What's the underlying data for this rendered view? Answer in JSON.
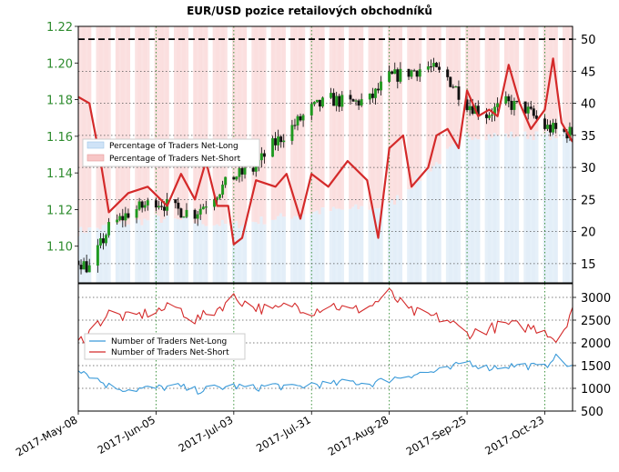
{
  "chart_data": [
    {
      "type": "candlestick",
      "title": "EUR/USD pozice retailových obchodníků",
      "left_axis": {
        "ylim": [
          1.08,
          1.22
        ],
        "ticks": [
          1.1,
          1.12,
          1.14,
          1.16,
          1.18,
          1.2,
          1.22
        ],
        "tick_labels": [
          "1.10",
          "1.12",
          "1.14",
          "1.16",
          "1.18",
          "1.20",
          "1.22"
        ],
        "color": "#2e8b2e"
      },
      "right_axis": {
        "ylim": [
          12,
          52
        ],
        "ticks": [
          15,
          20,
          25,
          30,
          35,
          40,
          45,
          50
        ],
        "tick_labels": [
          "15",
          "20",
          "25",
          "30",
          "35",
          "40",
          "45",
          "50"
        ],
        "reference_line": 50
      },
      "x_dates": [
        "2017-05-08",
        "2017-06-05",
        "2017-07-03",
        "2017-07-31",
        "2017-08-28",
        "2017-09-25",
        "2017-10-23"
      ],
      "x_tick_labels": [
        "2017-May-08",
        "2017-Jun-05",
        "2017-Jul-03",
        "2017-Jul-31",
        "2017-Aug-28",
        "2017-Sep-25",
        "2017-Oct-23"
      ],
      "price_close_keypoints": [
        {
          "date": "2017-05-08",
          "value": 1.092
        },
        {
          "date": "2017-05-12",
          "value": 1.088
        },
        {
          "date": "2017-05-19",
          "value": 1.11
        },
        {
          "date": "2017-05-26",
          "value": 1.118
        },
        {
          "date": "2017-06-05",
          "value": 1.125
        },
        {
          "date": "2017-06-12",
          "value": 1.12
        },
        {
          "date": "2017-06-19",
          "value": 1.118
        },
        {
          "date": "2017-06-26",
          "value": 1.128
        },
        {
          "date": "2017-07-03",
          "value": 1.138
        },
        {
          "date": "2017-07-10",
          "value": 1.142
        },
        {
          "date": "2017-07-17",
          "value": 1.155
        },
        {
          "date": "2017-07-24",
          "value": 1.165
        },
        {
          "date": "2017-07-31",
          "value": 1.175
        },
        {
          "date": "2017-08-07",
          "value": 1.18
        },
        {
          "date": "2017-08-14",
          "value": 1.178
        },
        {
          "date": "2017-08-21",
          "value": 1.18
        },
        {
          "date": "2017-08-28",
          "value": 1.192
        },
        {
          "date": "2017-09-04",
          "value": 1.195
        },
        {
          "date": "2017-09-11",
          "value": 1.198
        },
        {
          "date": "2017-09-18",
          "value": 1.192
        },
        {
          "date": "2017-09-25",
          "value": 1.178
        },
        {
          "date": "2017-10-02",
          "value": 1.172
        },
        {
          "date": "2017-10-09",
          "value": 1.178
        },
        {
          "date": "2017-10-16",
          "value": 1.175
        },
        {
          "date": "2017-10-23",
          "value": 1.165
        },
        {
          "date": "2017-10-30",
          "value": 1.162
        }
      ],
      "series": [
        {
          "name": "Percentage of Traders Net-Long",
          "color": "#cfe3f7",
          "note_keypoints": [
            {
              "date": "2017-05-08",
              "value": 20
            },
            {
              "date": "2017-06-05",
              "value": 22
            },
            {
              "date": "2017-07-03",
              "value": 21
            },
            {
              "date": "2017-07-31",
              "value": 23
            },
            {
              "date": "2017-08-28",
              "value": 24
            },
            {
              "date": "2017-09-25",
              "value": 35
            },
            {
              "date": "2017-10-23",
              "value": 35
            }
          ]
        },
        {
          "name": "Percentage of Traders Net-Short",
          "color": "#f7c6c6",
          "line_color": "#d42a2a",
          "keypoints": [
            {
              "date": "2017-05-08",
              "value": 41
            },
            {
              "date": "2017-05-12",
              "value": 40
            },
            {
              "date": "2017-05-16",
              "value": 31
            },
            {
              "date": "2017-05-19",
              "value": 23
            },
            {
              "date": "2017-05-26",
              "value": 26
            },
            {
              "date": "2017-06-02",
              "value": 27
            },
            {
              "date": "2017-06-09",
              "value": 24
            },
            {
              "date": "2017-06-14",
              "value": 29
            },
            {
              "date": "2017-06-19",
              "value": 25
            },
            {
              "date": "2017-06-23",
              "value": 31
            },
            {
              "date": "2017-06-27",
              "value": 24
            },
            {
              "date": "2017-07-01",
              "value": 24
            },
            {
              "date": "2017-07-03",
              "value": 18
            },
            {
              "date": "2017-07-06",
              "value": 19
            },
            {
              "date": "2017-07-11",
              "value": 28
            },
            {
              "date": "2017-07-18",
              "value": 27
            },
            {
              "date": "2017-07-22",
              "value": 29
            },
            {
              "date": "2017-07-27",
              "value": 22
            },
            {
              "date": "2017-07-31",
              "value": 29
            },
            {
              "date": "2017-08-06",
              "value": 27
            },
            {
              "date": "2017-08-13",
              "value": 31
            },
            {
              "date": "2017-08-20",
              "value": 28
            },
            {
              "date": "2017-08-24",
              "value": 19
            },
            {
              "date": "2017-08-28",
              "value": 33
            },
            {
              "date": "2017-09-02",
              "value": 35
            },
            {
              "date": "2017-09-05",
              "value": 27
            },
            {
              "date": "2017-09-11",
              "value": 30
            },
            {
              "date": "2017-09-14",
              "value": 35
            },
            {
              "date": "2017-09-18",
              "value": 36
            },
            {
              "date": "2017-09-22",
              "value": 33
            },
            {
              "date": "2017-09-25",
              "value": 42
            },
            {
              "date": "2017-09-29",
              "value": 38
            },
            {
              "date": "2017-10-03",
              "value": 39
            },
            {
              "date": "2017-10-06",
              "value": 38
            },
            {
              "date": "2017-10-10",
              "value": 46
            },
            {
              "date": "2017-10-14",
              "value": 40
            },
            {
              "date": "2017-10-18",
              "value": 36
            },
            {
              "date": "2017-10-23",
              "value": 39
            },
            {
              "date": "2017-10-26",
              "value": 47
            },
            {
              "date": "2017-10-29",
              "value": 37
            },
            {
              "date": "2017-11-02",
              "value": 34
            }
          ]
        }
      ],
      "legend": {
        "placement": "left",
        "entries": [
          "Percentage of Traders Net-Long",
          "Percentage of Traders Net-Short"
        ]
      },
      "grid": true
    },
    {
      "type": "line",
      "right_axis": {
        "ylim": [
          500,
          3300
        ],
        "ticks": [
          500,
          1000,
          1500,
          2000,
          2500,
          3000
        ],
        "tick_labels": [
          "500",
          "1000",
          "1500",
          "2000",
          "2500",
          "3000"
        ]
      },
      "series": [
        {
          "name": "Number of Traders Net-Long",
          "color": "#3a9ad9",
          "keypoints": [
            {
              "date": "2017-05-08",
              "value": 1450
            },
            {
              "date": "2017-05-12",
              "value": 1300
            },
            {
              "date": "2017-05-19",
              "value": 1050
            },
            {
              "date": "2017-05-26",
              "value": 980
            },
            {
              "date": "2017-06-05",
              "value": 1000
            },
            {
              "date": "2017-06-12",
              "value": 1050
            },
            {
              "date": "2017-06-19",
              "value": 950
            },
            {
              "date": "2017-06-26",
              "value": 1000
            },
            {
              "date": "2017-07-03",
              "value": 1050
            },
            {
              "date": "2017-07-10",
              "value": 1000
            },
            {
              "date": "2017-07-17",
              "value": 1080
            },
            {
              "date": "2017-07-24",
              "value": 1000
            },
            {
              "date": "2017-07-31",
              "value": 1100
            },
            {
              "date": "2017-08-07",
              "value": 1080
            },
            {
              "date": "2017-08-14",
              "value": 1150
            },
            {
              "date": "2017-08-21",
              "value": 1100
            },
            {
              "date": "2017-08-28",
              "value": 1200
            },
            {
              "date": "2017-09-04",
              "value": 1300
            },
            {
              "date": "2017-09-11",
              "value": 1350
            },
            {
              "date": "2017-09-18",
              "value": 1400
            },
            {
              "date": "2017-09-25",
              "value": 1600
            },
            {
              "date": "2017-10-02",
              "value": 1450
            },
            {
              "date": "2017-10-09",
              "value": 1500
            },
            {
              "date": "2017-10-16",
              "value": 1500
            },
            {
              "date": "2017-10-23",
              "value": 1450
            },
            {
              "date": "2017-10-26",
              "value": 1700
            },
            {
              "date": "2017-11-02",
              "value": 1450
            }
          ]
        },
        {
          "name": "Number of Traders Net-Short",
          "color": "#d42a2a",
          "keypoints": [
            {
              "date": "2017-05-08",
              "value": 2000
            },
            {
              "date": "2017-05-12",
              "value": 2250
            },
            {
              "date": "2017-05-19",
              "value": 2650
            },
            {
              "date": "2017-05-26",
              "value": 2550
            },
            {
              "date": "2017-06-05",
              "value": 2700
            },
            {
              "date": "2017-06-12",
              "value": 2800
            },
            {
              "date": "2017-06-19",
              "value": 2500
            },
            {
              "date": "2017-06-26",
              "value": 2700
            },
            {
              "date": "2017-07-03",
              "value": 3000
            },
            {
              "date": "2017-07-10",
              "value": 2800
            },
            {
              "date": "2017-07-17",
              "value": 2700
            },
            {
              "date": "2017-07-24",
              "value": 2850
            },
            {
              "date": "2017-07-31",
              "value": 2700
            },
            {
              "date": "2017-08-07",
              "value": 2850
            },
            {
              "date": "2017-08-14",
              "value": 2700
            },
            {
              "date": "2017-08-21",
              "value": 2800
            },
            {
              "date": "2017-08-28",
              "value": 3100
            },
            {
              "date": "2017-09-04",
              "value": 2700
            },
            {
              "date": "2017-09-11",
              "value": 2600
            },
            {
              "date": "2017-09-18",
              "value": 2500
            },
            {
              "date": "2017-09-25",
              "value": 2200
            },
            {
              "date": "2017-10-02",
              "value": 2300
            },
            {
              "date": "2017-10-09",
              "value": 2400
            },
            {
              "date": "2017-10-16",
              "value": 2350
            },
            {
              "date": "2017-10-23",
              "value": 2300
            },
            {
              "date": "2017-10-28",
              "value": 2000
            },
            {
              "date": "2017-11-02",
              "value": 2800
            }
          ]
        }
      ],
      "legend": {
        "placement": "left",
        "entries": [
          "Number of Traders Net-Long",
          "Number of Traders Net-Short"
        ]
      },
      "grid": true
    }
  ]
}
